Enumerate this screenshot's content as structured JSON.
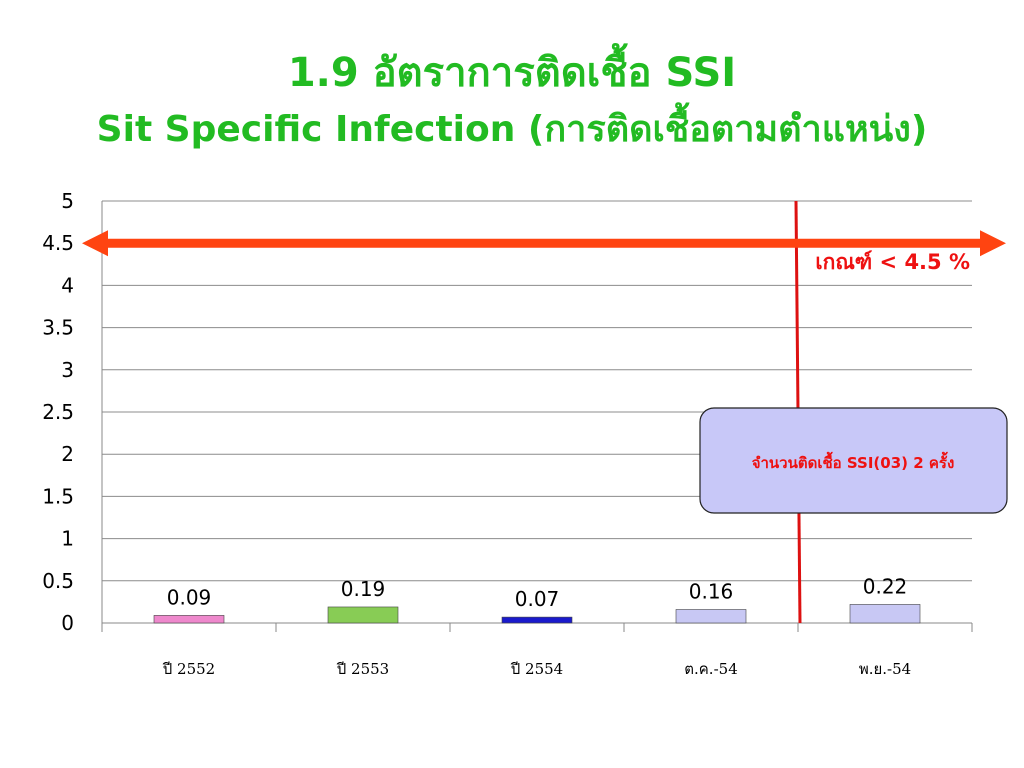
{
  "title": "1.9 อัตราการติดเชื้อ SSI",
  "subtitle": "Sit Specific Infection (การติดเชื้อตามตำแหน่ง)",
  "chart_data": {
    "type": "bar",
    "categories": [
      "ปี 2552",
      "ปี 2553",
      "ปี 2554",
      "ต.ค.-54",
      "พ.ย.-54"
    ],
    "values": [
      0.09,
      0.19,
      0.07,
      0.16,
      0.22
    ],
    "value_labels": [
      "0.09",
      "0.19",
      "0.07",
      "0.16",
      "0.22"
    ],
    "bar_colors": [
      "#ee88cc",
      "#88cc55",
      "#1a1acc",
      "#c8c8f4",
      "#c8c8f4"
    ],
    "ylim": [
      0,
      5
    ],
    "yticks": [
      0,
      0.5,
      1,
      1.5,
      2,
      2.5,
      3,
      3.5,
      4,
      4.5,
      5
    ],
    "ytick_labels": [
      "0",
      "0.5",
      "1",
      "1.5",
      "2",
      "2.5",
      "3",
      "3.5",
      "4",
      "4.5",
      "5"
    ],
    "grid": true,
    "threshold": {
      "value": 4.5,
      "label": "เกณฑ์ < 4.5 %",
      "color": "#ff4411"
    },
    "divider": {
      "between_categories": [
        3,
        4
      ],
      "color": "#dd1111"
    },
    "annotation": {
      "text": "จำนวนติดเชื้อ SSI(03) 2 ครั้ง",
      "fill": "#c8c8f8"
    }
  }
}
